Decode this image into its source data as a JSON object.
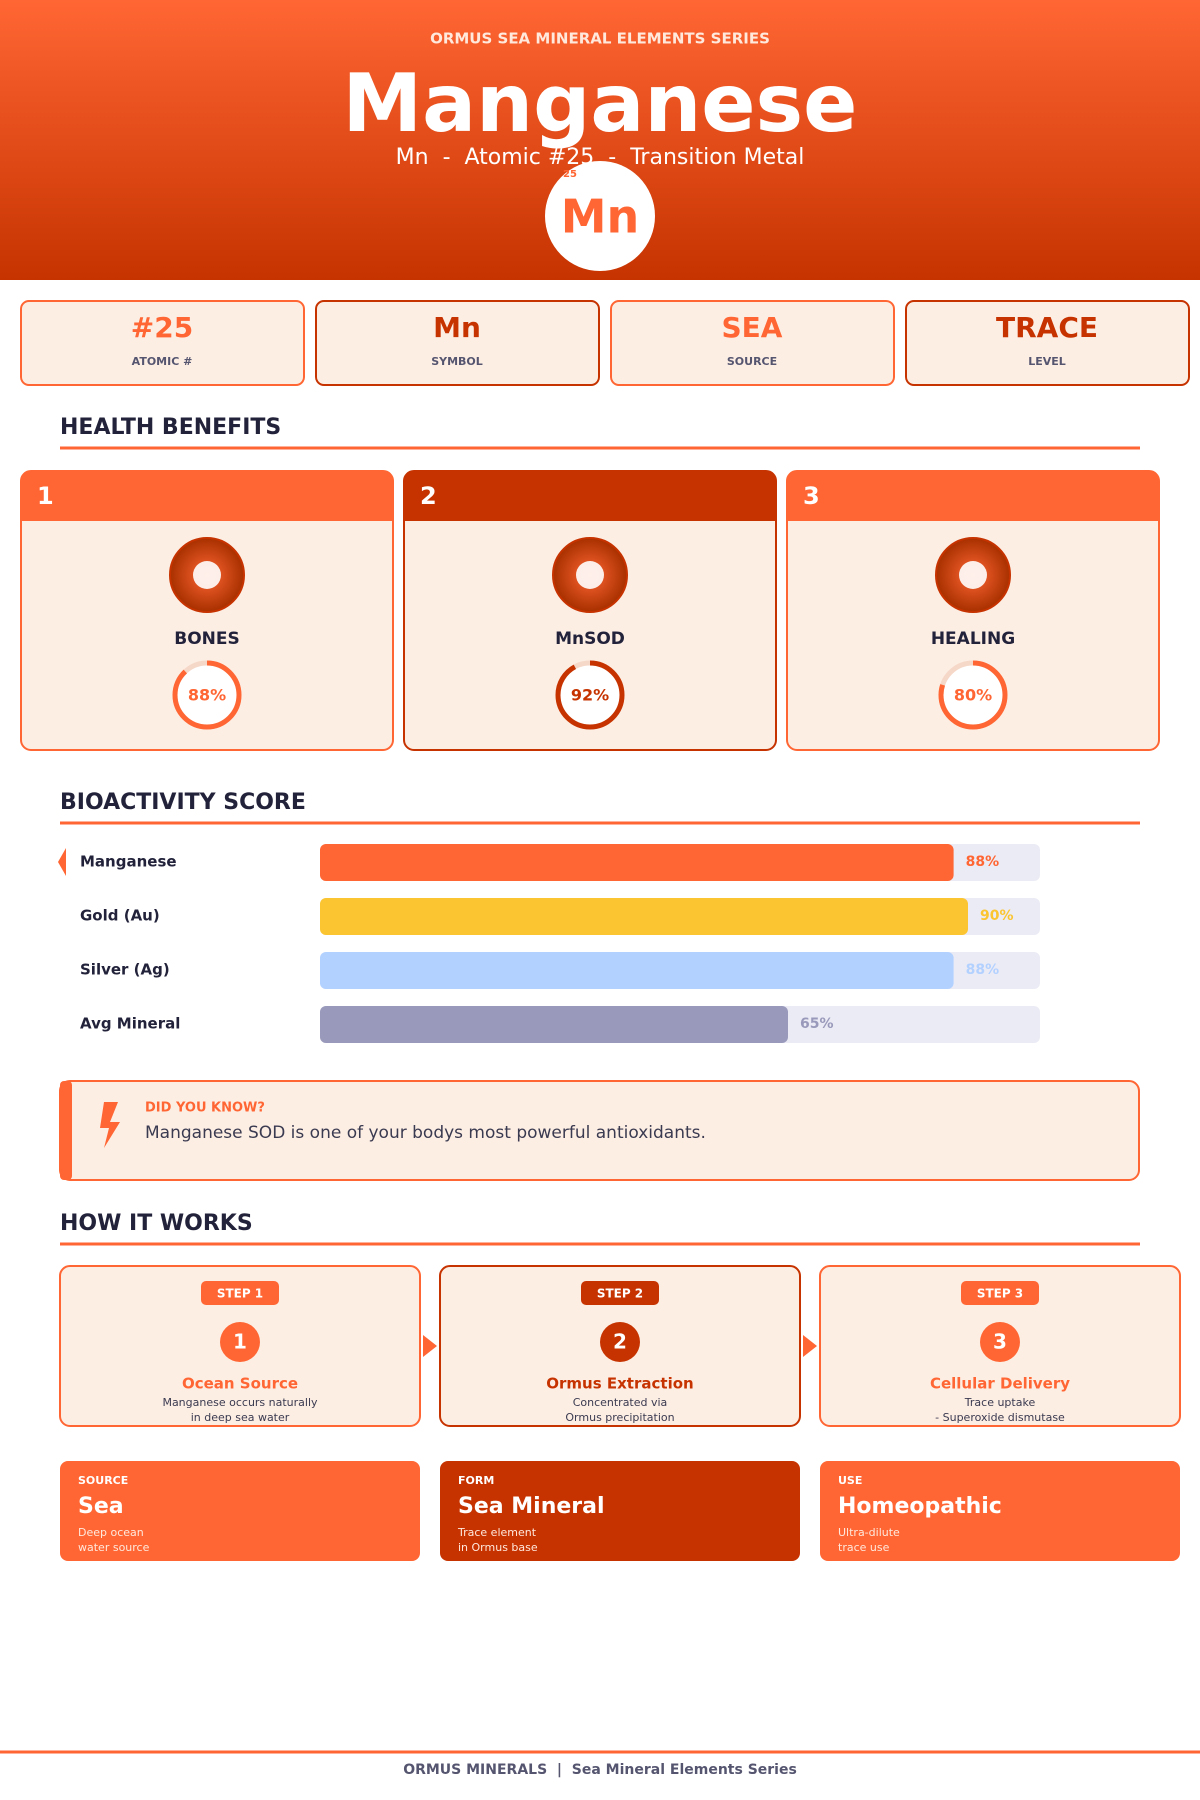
{
  "header": {
    "series": "ORMUS SEA MINERAL ELEMENTS SERIES",
    "title": "Manganese",
    "subtitle": "Mn  -  Atomic #25  -  Transition Metal",
    "badge_symbol": "Mn",
    "badge_number": "25"
  },
  "stats": [
    {
      "value": "#25",
      "label": "ATOMIC #",
      "color": "#ff6633"
    },
    {
      "value": "Mn",
      "label": "SYMBOL",
      "color": "#c63300"
    },
    {
      "value": "SEA",
      "label": "SOURCE",
      "color": "#ff6633"
    },
    {
      "value": "TRACE",
      "label": "LEVEL",
      "color": "#c63300"
    }
  ],
  "health_benefits": {
    "heading": "HEALTH BENEFITS",
    "xlim": [
      0,
      100
    ],
    "items": [
      {
        "number": "1",
        "name": "BONES",
        "percent": 88,
        "percent_label": "88%",
        "color": "#ff6633"
      },
      {
        "number": "2",
        "name": "MnSOD",
        "percent": 92,
        "percent_label": "92%",
        "color": "#c63300"
      },
      {
        "number": "3",
        "name": "HEALING",
        "percent": 80,
        "percent_label": "80%",
        "color": "#ff6633"
      }
    ]
  },
  "bioactivity": {
    "heading": "BIOACTIVITY SCORE",
    "xlim": [
      0,
      100
    ],
    "rows": [
      {
        "name": "Manganese",
        "value": 88,
        "label": "88%",
        "color": "#ff6633"
      },
      {
        "name": "Gold (Au)",
        "value": 90,
        "label": "90%",
        "color": "#fbc531"
      },
      {
        "name": "Silver (Ag)",
        "value": 88,
        "label": "88%",
        "color": "#b3d1ff"
      },
      {
        "name": "Avg Mineral",
        "value": 65,
        "label": "65%",
        "color": "#9999bb"
      }
    ]
  },
  "fact": {
    "heading": "DID YOU KNOW?",
    "text": "Manganese SOD is one of your bodys most powerful antioxidants."
  },
  "how_it_works": {
    "heading": "HOW IT WORKS",
    "steps": [
      {
        "badge": "STEP 1",
        "number": "1",
        "title": "Ocean Source",
        "lines": [
          "Manganese occurs naturally",
          "in deep sea water"
        ],
        "color": "#ff6633"
      },
      {
        "badge": "STEP 2",
        "number": "2",
        "title": "Ormus Extraction",
        "lines": [
          "Concentrated via",
          "Ormus precipitation"
        ],
        "color": "#c63300"
      },
      {
        "badge": "STEP 3",
        "number": "3",
        "title": "Cellular Delivery",
        "lines": [
          "Trace uptake",
          "- Superoxide dismutase"
        ],
        "color": "#ff6633"
      }
    ]
  },
  "info_cards": [
    {
      "label": "SOURCE",
      "value": "Sea",
      "lines": [
        "Deep ocean",
        "water source"
      ],
      "color": "#ff6633"
    },
    {
      "label": "FORM",
      "value": "Sea Mineral",
      "lines": [
        "Trace element",
        "in Ormus base"
      ],
      "color": "#c63300"
    },
    {
      "label": "USE",
      "value": "Homeopathic",
      "lines": [
        "Ultra-dilute",
        "trace use"
      ],
      "color": "#ff6633"
    }
  ],
  "footer": "ORMUS MINERALS  |  Sea Mineral Elements Series"
}
